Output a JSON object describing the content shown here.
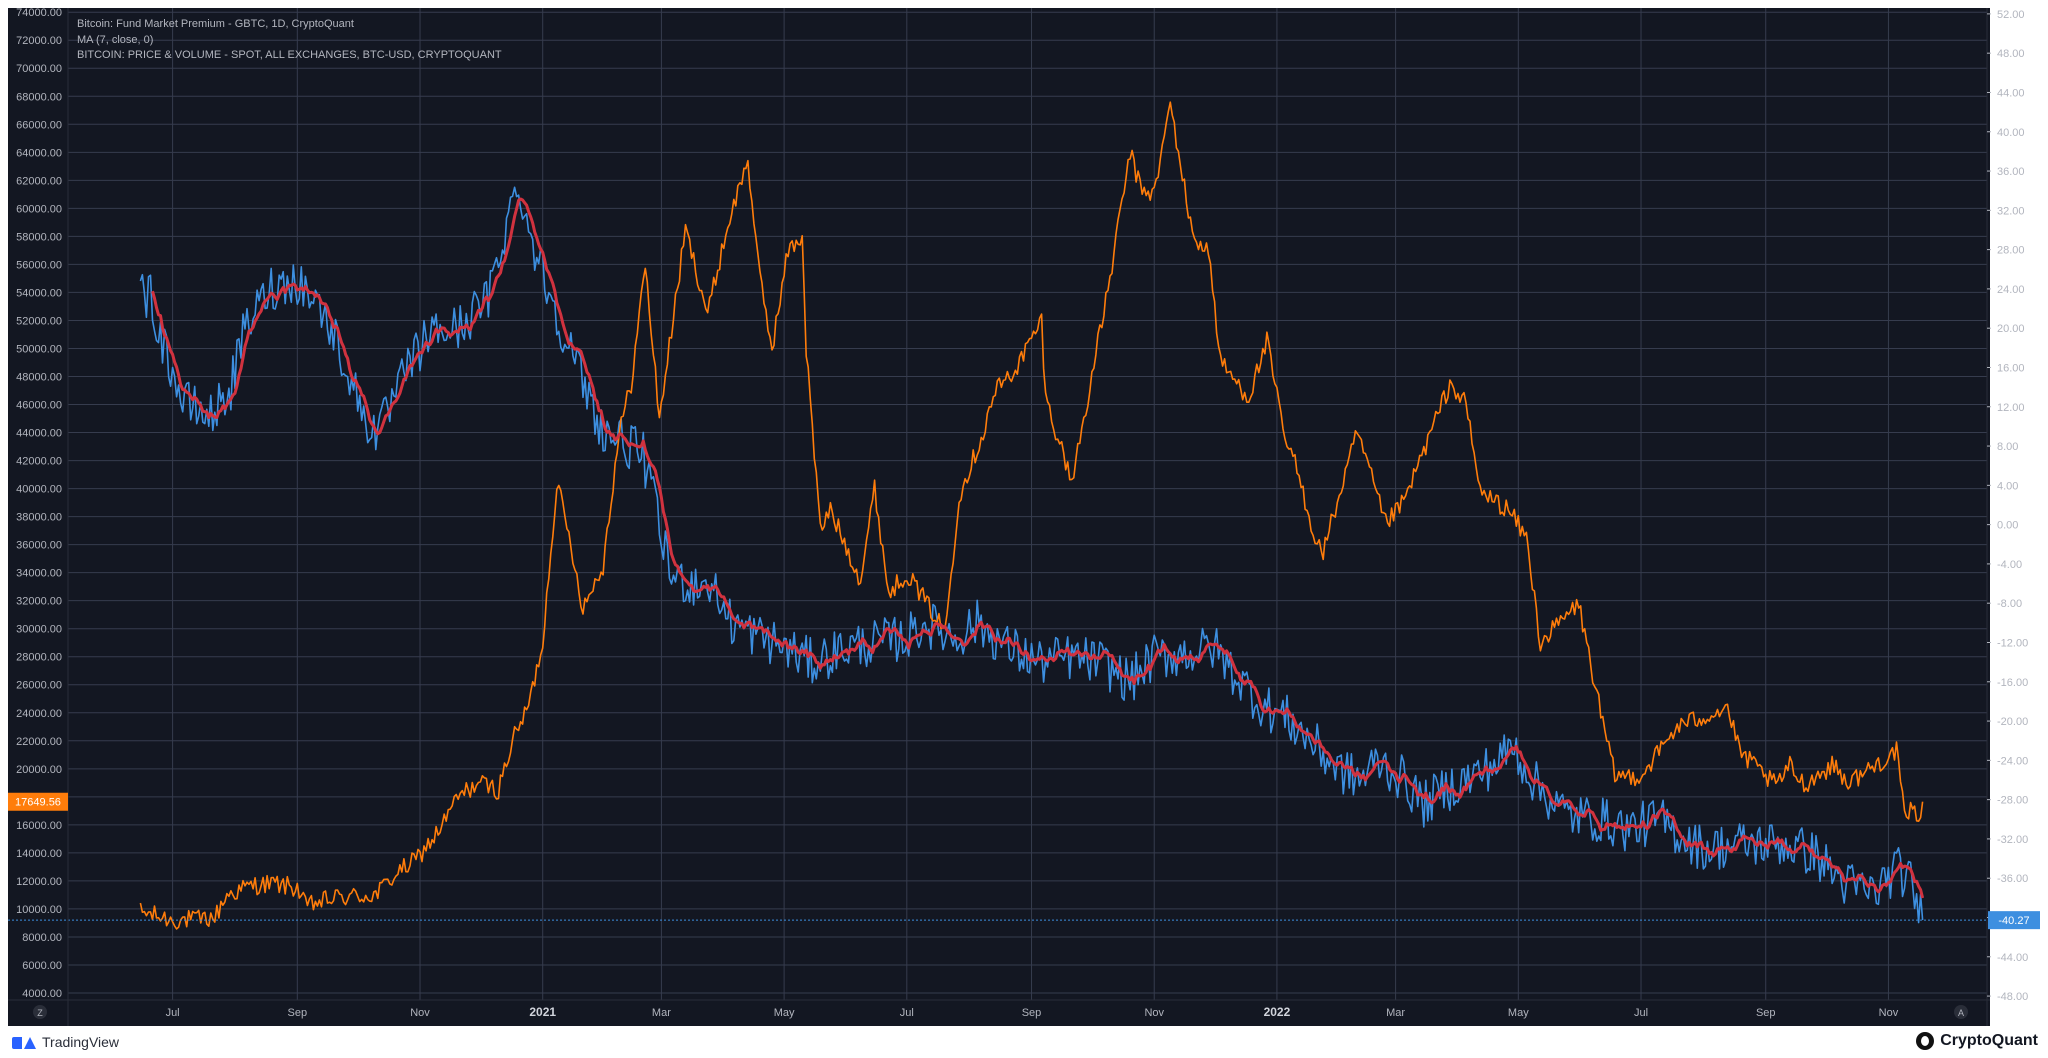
{
  "legend": {
    "line1": "Bitcoin: Fund Market Premium - GBTC, 1D, CryptoQuant",
    "line2": "MA (7, close, 0)",
    "line3": "BITCOIN: PRICE & VOLUME - SPOT, ALL EXCHANGES, BTC-USD, CRYPTOQUANT"
  },
  "footer": {
    "left_brand": "TradingView",
    "right_brand": "CryptoQuant",
    "left_icon": "tradingview-logo-icon",
    "right_icon": "cryptoquant-logo-icon"
  },
  "corner_buttons": {
    "left": "Z",
    "right": "A"
  },
  "colors": {
    "background": "#131722",
    "grid": "#363c4e",
    "axis_text": "#b2b5be",
    "price": "#ff7d0b",
    "premium": "#3d8fe0",
    "ma": "#d1323f"
  },
  "chart_data": {
    "type": "line",
    "x_axis": {
      "type": "date",
      "range": [
        "2020-05-10",
        "2022-12-20"
      ],
      "ticks": [
        {
          "date": "2020-07-01",
          "label": "Jul",
          "bold": false
        },
        {
          "date": "2020-09-01",
          "label": "Sep",
          "bold": false
        },
        {
          "date": "2020-11-01",
          "label": "Nov",
          "bold": false
        },
        {
          "date": "2021-01-01",
          "label": "2021",
          "bold": true
        },
        {
          "date": "2021-03-01",
          "label": "Mar",
          "bold": false
        },
        {
          "date": "2021-05-01",
          "label": "May",
          "bold": false
        },
        {
          "date": "2021-07-01",
          "label": "Jul",
          "bold": false
        },
        {
          "date": "2021-09-01",
          "label": "Sep",
          "bold": false
        },
        {
          "date": "2021-11-01",
          "label": "Nov",
          "bold": false
        },
        {
          "date": "2022-01-01",
          "label": "2022",
          "bold": true
        },
        {
          "date": "2022-03-01",
          "label": "Mar",
          "bold": false
        },
        {
          "date": "2022-05-01",
          "label": "May",
          "bold": false
        },
        {
          "date": "2022-07-01",
          "label": "Jul",
          "bold": false
        },
        {
          "date": "2022-09-01",
          "label": "Sep",
          "bold": false
        },
        {
          "date": "2022-11-01",
          "label": "Nov",
          "bold": false
        }
      ]
    },
    "y_left": {
      "range": [
        3500,
        74300
      ],
      "ticks": [
        "74000.00",
        "72000.00",
        "70000.00",
        "68000.00",
        "66000.00",
        "64000.00",
        "62000.00",
        "60000.00",
        "58000.00",
        "56000.00",
        "54000.00",
        "52000.00",
        "50000.00",
        "48000.00",
        "46000.00",
        "44000.00",
        "42000.00",
        "40000.00",
        "38000.00",
        "36000.00",
        "34000.00",
        "32000.00",
        "30000.00",
        "28000.00",
        "26000.00",
        "24000.00",
        "22000.00",
        "20000.00",
        "18000.00",
        "16000.00",
        "14000.00",
        "12000.00",
        "10000.00",
        "8000.00",
        "6000.00",
        "4000.00"
      ],
      "current_label": "17649.56",
      "current_value": 17649.56
    },
    "y_right": {
      "range": [
        -48.4,
        52.6
      ],
      "ticks": [
        "52.00",
        "48.00",
        "44.00",
        "40.00",
        "36.00",
        "32.00",
        "28.00",
        "24.00",
        "20.00",
        "16.00",
        "12.00",
        "8.00",
        "4.00",
        "0.00",
        "-4.00",
        "-8.00",
        "-12.00",
        "-16.00",
        "-20.00",
        "-24.00",
        "-28.00",
        "-32.00",
        "-36.00",
        "-40.00",
        "-44.00",
        "-48.00"
      ],
      "current_label": "-40.27",
      "current_value": -40.27
    },
    "series": [
      {
        "key": "price",
        "axis": "left",
        "points": [
          [
            "2020-06-15",
            9800
          ],
          [
            "2020-07-01",
            9200
          ],
          [
            "2020-07-15",
            9250
          ],
          [
            "2020-07-22",
            9400
          ],
          [
            "2020-07-28",
            11000
          ],
          [
            "2020-08-10",
            11700
          ],
          [
            "2020-08-20",
            11800
          ],
          [
            "2020-09-01",
            11500
          ],
          [
            "2020-09-05",
            10200
          ],
          [
            "2020-09-20",
            10800
          ],
          [
            "2020-10-10",
            11000
          ],
          [
            "2020-10-20",
            12500
          ],
          [
            "2020-10-30",
            13500
          ],
          [
            "2020-11-10",
            15500
          ],
          [
            "2020-11-20",
            18000
          ],
          [
            "2020-11-30",
            19000
          ],
          [
            "2020-12-10",
            18500
          ],
          [
            "2020-12-17",
            22000
          ],
          [
            "2020-12-25",
            24500
          ],
          [
            "2021-01-01",
            29000
          ],
          [
            "2021-01-08",
            40500
          ],
          [
            "2021-01-15",
            36000
          ],
          [
            "2021-01-21",
            31500
          ],
          [
            "2021-01-31",
            34500
          ],
          [
            "2021-02-08",
            44000
          ],
          [
            "2021-02-14",
            47500
          ],
          [
            "2021-02-21",
            56000
          ],
          [
            "2021-02-28",
            45000
          ],
          [
            "2021-03-13",
            58500
          ],
          [
            "2021-03-24",
            52500
          ],
          [
            "2021-04-03",
            58800
          ],
          [
            "2021-04-13",
            63500
          ],
          [
            "2021-04-18",
            56000
          ],
          [
            "2021-04-25",
            50000
          ],
          [
            "2021-05-03",
            57000
          ],
          [
            "2021-05-10",
            58000
          ],
          [
            "2021-05-12",
            50000
          ],
          [
            "2021-05-19",
            37000
          ],
          [
            "2021-05-24",
            38500
          ],
          [
            "2021-06-08",
            33500
          ],
          [
            "2021-06-15",
            40000
          ],
          [
            "2021-06-22",
            32500
          ],
          [
            "2021-07-01",
            34000
          ],
          [
            "2021-07-20",
            29800
          ],
          [
            "2021-07-27",
            39500
          ],
          [
            "2021-08-08",
            44000
          ],
          [
            "2021-08-14",
            47000
          ],
          [
            "2021-08-24",
            48500
          ],
          [
            "2021-09-06",
            52000
          ],
          [
            "2021-09-08",
            46500
          ],
          [
            "2021-09-21",
            40500
          ],
          [
            "2021-10-01",
            48000
          ],
          [
            "2021-10-10",
            55000
          ],
          [
            "2021-10-20",
            64000
          ],
          [
            "2021-10-25",
            61500
          ],
          [
            "2021-11-01",
            61000
          ],
          [
            "2021-11-09",
            67500
          ],
          [
            "2021-11-20",
            58000
          ],
          [
            "2021-11-28",
            57000
          ],
          [
            "2021-12-04",
            49000
          ],
          [
            "2021-12-18",
            46500
          ],
          [
            "2021-12-27",
            50500
          ],
          [
            "2022-01-05",
            43500
          ],
          [
            "2022-01-10",
            41800
          ],
          [
            "2022-01-21",
            36000
          ],
          [
            "2022-01-24",
            35500
          ],
          [
            "2022-02-10",
            44000
          ],
          [
            "2022-02-24",
            37500
          ],
          [
            "2022-03-05",
            39000
          ],
          [
            "2022-03-28",
            47500
          ],
          [
            "2022-04-05",
            46000
          ],
          [
            "2022-04-12",
            39800
          ],
          [
            "2022-04-26",
            38500
          ],
          [
            "2022-05-05",
            36500
          ],
          [
            "2022-05-12",
            29000
          ],
          [
            "2022-05-31",
            31800
          ],
          [
            "2022-06-13",
            22500
          ],
          [
            "2022-06-18",
            19500
          ],
          [
            "2022-07-01",
            19500
          ],
          [
            "2022-07-19",
            23000
          ],
          [
            "2022-08-13",
            24400
          ],
          [
            "2022-08-19",
            21200
          ],
          [
            "2022-09-06",
            18800
          ],
          [
            "2022-09-13",
            20200
          ],
          [
            "2022-09-20",
            18900
          ],
          [
            "2022-10-05",
            20300
          ],
          [
            "2022-10-12",
            19000
          ],
          [
            "2022-10-25",
            20200
          ],
          [
            "2022-11-05",
            21300
          ],
          [
            "2022-11-09",
            16500
          ],
          [
            "2022-11-12",
            17000
          ],
          [
            "2022-11-16",
            16700
          ],
          [
            "2022-11-18",
            17650
          ]
        ]
      },
      {
        "key": "premium",
        "axis": "right",
        "points": [
          [
            "2020-06-15",
            24.0
          ],
          [
            "2020-06-20",
            23.0
          ],
          [
            "2020-06-27",
            18.0
          ],
          [
            "2020-07-06",
            12.5
          ],
          [
            "2020-07-20",
            11.0
          ],
          [
            "2020-07-30",
            14.0
          ],
          [
            "2020-08-06",
            20.0
          ],
          [
            "2020-08-18",
            24.0
          ],
          [
            "2020-08-31",
            25.0
          ],
          [
            "2020-09-10",
            23.0
          ],
          [
            "2020-09-20",
            19.0
          ],
          [
            "2020-10-05",
            10.5
          ],
          [
            "2020-10-12",
            9.5
          ],
          [
            "2020-10-26",
            16.0
          ],
          [
            "2020-11-06",
            19.5
          ],
          [
            "2020-11-20",
            20.0
          ],
          [
            "2020-12-05",
            23.0
          ],
          [
            "2020-12-12",
            29.0
          ],
          [
            "2020-12-20",
            35.0
          ],
          [
            "2020-12-25",
            30.0
          ],
          [
            "2021-01-08",
            21.5
          ],
          [
            "2021-01-20",
            15.0
          ],
          [
            "2021-01-31",
            9.5
          ],
          [
            "2021-02-10",
            8.5
          ],
          [
            "2021-02-20",
            7.0
          ],
          [
            "2021-02-28",
            0.0
          ],
          [
            "2021-03-05",
            -5.0
          ],
          [
            "2021-03-15",
            -6.0
          ],
          [
            "2021-03-25",
            -6.0
          ],
          [
            "2021-04-05",
            -10.0
          ],
          [
            "2021-04-20",
            -11.5
          ],
          [
            "2021-05-01",
            -12.5
          ],
          [
            "2021-05-15",
            -14.0
          ],
          [
            "2021-06-01",
            -12.5
          ],
          [
            "2021-06-15",
            -12.0
          ],
          [
            "2021-07-01",
            -11.5
          ],
          [
            "2021-07-10",
            -10.0
          ],
          [
            "2021-07-25",
            -11.5
          ],
          [
            "2021-08-05",
            -10.0
          ],
          [
            "2021-08-20",
            -12.5
          ],
          [
            "2021-09-05",
            -14.0
          ],
          [
            "2021-09-20",
            -13.5
          ],
          [
            "2021-10-05",
            -14.0
          ],
          [
            "2021-10-20",
            -16.0
          ],
          [
            "2021-11-01",
            -13.5
          ],
          [
            "2021-11-20",
            -13.0
          ],
          [
            "2021-12-01",
            -12.5
          ],
          [
            "2021-12-10",
            -15.0
          ],
          [
            "2021-12-25",
            -18.5
          ],
          [
            "2022-01-05",
            -19.5
          ],
          [
            "2022-01-20",
            -22.5
          ],
          [
            "2022-02-01",
            -25.0
          ],
          [
            "2022-02-12",
            -26.0
          ],
          [
            "2022-02-20",
            -24.0
          ],
          [
            "2022-03-05",
            -26.0
          ],
          [
            "2022-03-15",
            -28.5
          ],
          [
            "2022-03-25",
            -27.0
          ],
          [
            "2022-04-10",
            -25.5
          ],
          [
            "2022-04-22",
            -24.0
          ],
          [
            "2022-04-28",
            -22.5
          ],
          [
            "2022-05-10",
            -26.5
          ],
          [
            "2022-05-25",
            -29.5
          ],
          [
            "2022-06-10",
            -30.0
          ],
          [
            "2022-06-25",
            -31.0
          ],
          [
            "2022-07-10",
            -30.0
          ],
          [
            "2022-07-20",
            -31.5
          ],
          [
            "2022-08-01",
            -33.0
          ],
          [
            "2022-08-20",
            -32.5
          ],
          [
            "2022-09-10",
            -32.5
          ],
          [
            "2022-09-25",
            -33.5
          ],
          [
            "2022-10-10",
            -36.5
          ],
          [
            "2022-10-25",
            -37.5
          ],
          [
            "2022-11-05",
            -35.0
          ],
          [
            "2022-11-12",
            -36.5
          ],
          [
            "2022-11-18",
            -40.27
          ]
        ]
      }
    ],
    "moving_average": {
      "label": "MA (7, close, 0)",
      "period": 7,
      "of": "premium"
    }
  }
}
